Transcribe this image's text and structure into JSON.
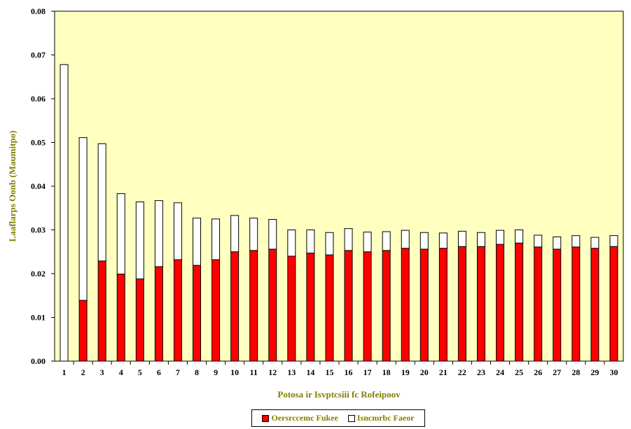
{
  "chart_data": {
    "type": "bar",
    "stacked": true,
    "title": "",
    "xlabel": "Potosa ir Isvptcsiii fc Rofeipoov",
    "ylabel": "Laaflarps Oonb (Maumitpo)",
    "ylim": [
      0,
      0.08
    ],
    "yticks": [
      "0.00",
      "0.01",
      "0.02",
      "0.03",
      "0.04",
      "0.05",
      "0.06",
      "0.07",
      "0.08"
    ],
    "plot_background": "#FFFFC0",
    "grid": false,
    "legend_position": "bottom-center",
    "categories": [
      "1",
      "2",
      "3",
      "4",
      "5",
      "6",
      "7",
      "8",
      "9",
      "10",
      "11",
      "12",
      "13",
      "14",
      "15",
      "16",
      "17",
      "18",
      "19",
      "20",
      "21",
      "22",
      "23",
      "24",
      "25",
      "26",
      "27",
      "28",
      "29",
      "30"
    ],
    "series": [
      {
        "name": "Oersrccemc Fukee",
        "color": "#FF0000",
        "values": [
          0,
          0.0139,
          0.0229,
          0.0199,
          0.0188,
          0.0216,
          0.0232,
          0.0219,
          0.0232,
          0.025,
          0.0253,
          0.0256,
          0.024,
          0.0247,
          0.0243,
          0.0253,
          0.025,
          0.0253,
          0.0258,
          0.0256,
          0.0258,
          0.0262,
          0.0262,
          0.0267,
          0.027,
          0.0261,
          0.0256,
          0.0261,
          0.0258,
          0.0262
        ]
      },
      {
        "name": "Isncmrbc Faeor",
        "color": "#FFFFFF",
        "values": [
          0.0678,
          0.0372,
          0.0268,
          0.0184,
          0.0176,
          0.0151,
          0.013,
          0.0108,
          0.0093,
          0.0083,
          0.0074,
          0.0068,
          0.006,
          0.0053,
          0.0051,
          0.005,
          0.0045,
          0.0043,
          0.0041,
          0.0038,
          0.0035,
          0.0035,
          0.0032,
          0.0032,
          0.003,
          0.0027,
          0.0028,
          0.0026,
          0.0025,
          0.0025
        ]
      }
    ]
  }
}
